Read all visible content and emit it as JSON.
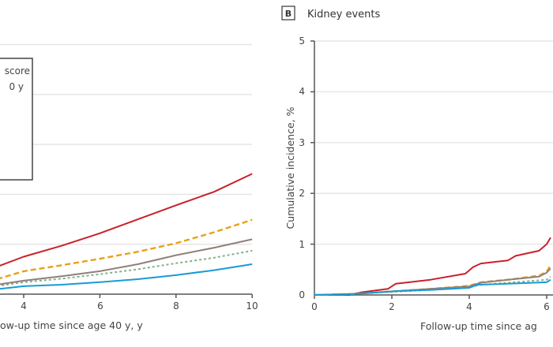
{
  "chart_data": [
    {
      "type": "line",
      "panel": "A (partially visible)",
      "xlabel": "ow-up time since age 40 y, y",
      "x_ticks": [
        "4",
        "6",
        "8",
        "10"
      ],
      "xlim": [
        3.3,
        10
      ],
      "ylim": [
        0,
        5
      ],
      "grid": true,
      "legend": {
        "placement": "top-left",
        "text": [
          "score",
          "0 y"
        ]
      },
      "series": [
        {
          "color": "#c8202c",
          "style": "solid",
          "x": [
            3.3,
            4,
            5,
            6,
            7,
            8,
            9,
            10
          ],
          "y": [
            0.55,
            0.75,
            0.97,
            1.22,
            1.5,
            1.78,
            2.05,
            2.41
          ]
        },
        {
          "color": "#e8a019",
          "style": "dashed",
          "x": [
            3.3,
            4,
            5,
            6,
            7,
            8,
            9,
            10
          ],
          "y": [
            0.3,
            0.46,
            0.58,
            0.71,
            0.85,
            1.02,
            1.24,
            1.49
          ]
        },
        {
          "color": "#8f8079",
          "style": "solid",
          "x": [
            3.3,
            4,
            5,
            6,
            7,
            8,
            9,
            10
          ],
          "y": [
            0.19,
            0.27,
            0.36,
            0.46,
            0.6,
            0.78,
            0.93,
            1.1
          ]
        },
        {
          "color": "#7fb28a",
          "style": "dotted",
          "x": [
            3.3,
            4,
            5,
            6,
            7,
            8,
            9,
            10
          ],
          "y": [
            0.16,
            0.24,
            0.31,
            0.4,
            0.5,
            0.62,
            0.73,
            0.87
          ]
        },
        {
          "color": "#1a9ad6",
          "style": "solid",
          "x": [
            3.3,
            4,
            5,
            6,
            7,
            8,
            9,
            10
          ],
          "y": [
            0.1,
            0.16,
            0.19,
            0.24,
            0.3,
            0.38,
            0.48,
            0.6
          ]
        }
      ]
    },
    {
      "type": "line",
      "panel_letter": "B",
      "title": "Kidney events",
      "xlabel": "Follow-up time since ag",
      "ylabel": "Cumulative incidence, %",
      "x_ticks": [
        "0",
        "2",
        "4",
        "6"
      ],
      "y_ticks": [
        "0",
        "1",
        "2",
        "3",
        "4",
        "5"
      ],
      "xlim": [
        0,
        6.1
      ],
      "ylim": [
        0,
        5
      ],
      "grid": true,
      "series": [
        {
          "color": "#c8202c",
          "style": "solid",
          "x": [
            0,
            0.9,
            1.2,
            1.9,
            2.1,
            3,
            3.9,
            4.1,
            4.3,
            5,
            5.2,
            5.8,
            6,
            6.1
          ],
          "y": [
            0,
            0,
            0.05,
            0.12,
            0.22,
            0.3,
            0.42,
            0.55,
            0.62,
            0.68,
            0.77,
            0.87,
            1.0,
            1.13
          ]
        },
        {
          "color": "#e8a019",
          "style": "dashed",
          "x": [
            0,
            1,
            2,
            3,
            4,
            4.3,
            5,
            5.8,
            6,
            6.1
          ],
          "y": [
            0,
            0.02,
            0.07,
            0.12,
            0.18,
            0.25,
            0.3,
            0.38,
            0.46,
            0.58
          ]
        },
        {
          "color": "#8f8079",
          "style": "solid",
          "x": [
            0,
            1,
            2,
            3,
            4,
            4.3,
            5,
            5.8,
            6,
            6.1
          ],
          "y": [
            0,
            0.02,
            0.07,
            0.12,
            0.17,
            0.24,
            0.3,
            0.36,
            0.44,
            0.52
          ]
        },
        {
          "color": "#7fb28a",
          "style": "dotted",
          "x": [
            0,
            1,
            2,
            3,
            4,
            4.3,
            5,
            6,
            6.1
          ],
          "y": [
            0,
            0.02,
            0.06,
            0.1,
            0.15,
            0.2,
            0.24,
            0.3,
            0.36
          ]
        },
        {
          "color": "#1a9ad6",
          "style": "solid",
          "x": [
            0,
            1,
            2,
            3,
            4,
            4.2,
            5,
            6,
            6.1
          ],
          "y": [
            0,
            0.02,
            0.07,
            0.1,
            0.14,
            0.2,
            0.22,
            0.25,
            0.3
          ]
        }
      ]
    }
  ]
}
